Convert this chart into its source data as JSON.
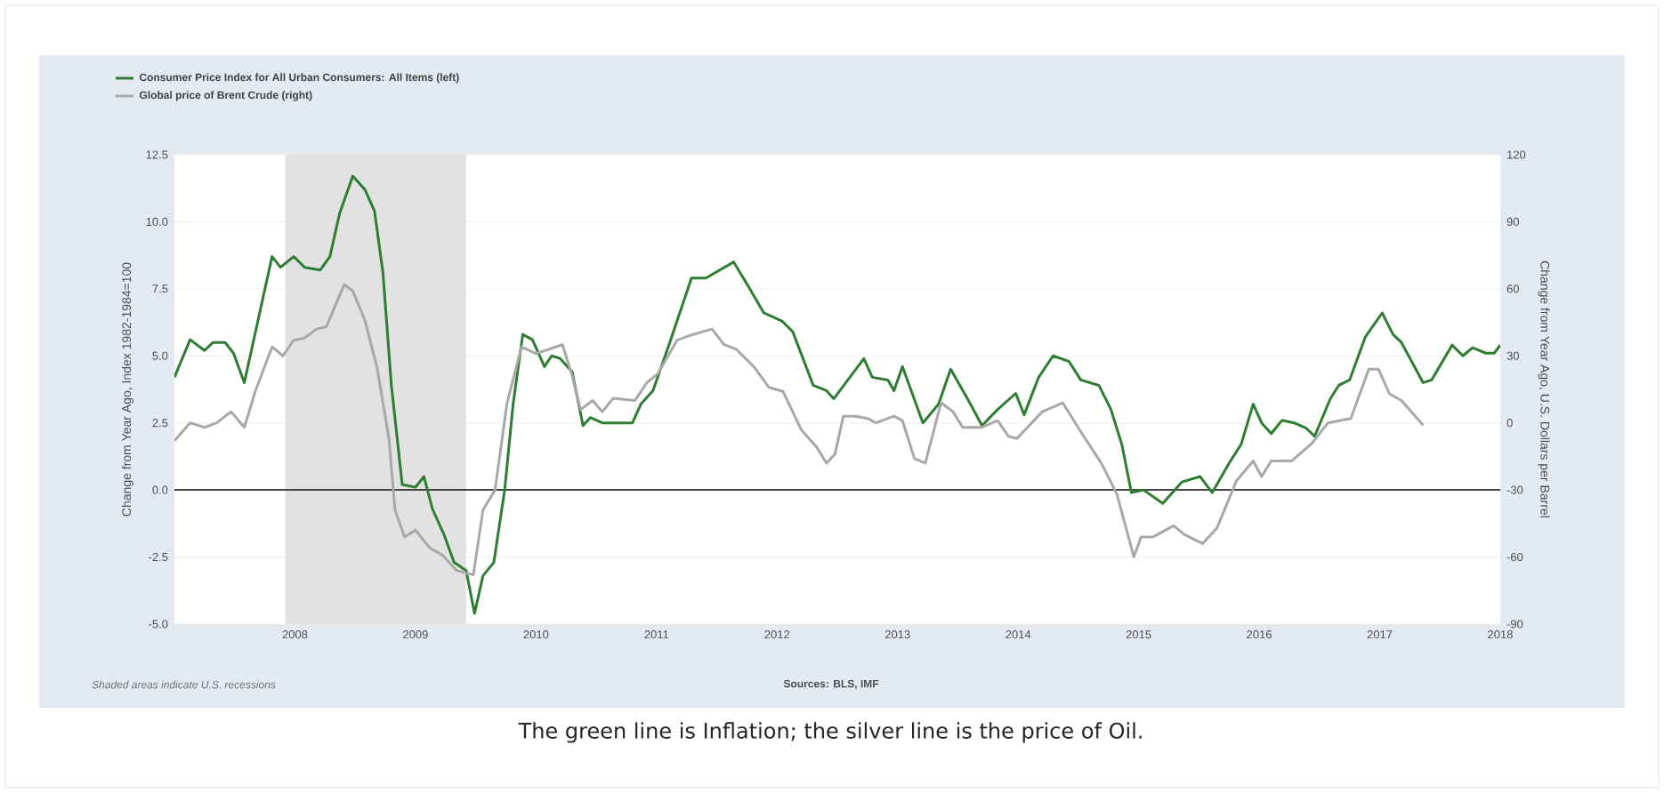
{
  "chart_data": {
    "type": "line",
    "xlabel": null,
    "ylabel": "Change from Year Ago, Index 1982-1984=100",
    "y2label": "Change from Year Ago, U.S. Dollars per Barrel",
    "annotations": [
      "Shaded areas indicate U.S. recessions",
      "Sources: BLS, IMF",
      "The green line is Inflation; the silver line is the price of Oil."
    ],
    "xlim": [
      2007.0,
      2018.0
    ],
    "xticks": [
      2008,
      2009,
      2010,
      2011,
      2012,
      2013,
      2014,
      2015,
      2016,
      2017,
      2018
    ],
    "ylim": [
      -5,
      12.5
    ],
    "yticks": [
      {
        "value": -5,
        "label": "-5.0"
      },
      {
        "value": -2.5,
        "label": "-2.5"
      },
      {
        "value": 0,
        "label": "0.0"
      },
      {
        "value": 2.5,
        "label": "2.5"
      },
      {
        "value": 5,
        "label": "5.0"
      },
      {
        "value": 7.5,
        "label": "7.5"
      },
      {
        "value": 10,
        "label": "10.0"
      },
      {
        "value": 12.5,
        "label": "12.5"
      }
    ],
    "y2lim": [
      -90,
      120
    ],
    "y2ticks": [
      -90,
      -60,
      -30,
      0,
      30,
      60,
      90,
      120
    ],
    "grid": "y",
    "legend": "top left",
    "marker": "none",
    "line_style": "solid",
    "ref_lines": [
      {
        "axis": "y",
        "value": 0,
        "color": "#444444"
      }
    ],
    "bands": [
      {
        "axis": "x",
        "from": 2007.92,
        "to": 2009.42,
        "color": "#e2e2e2"
      }
    ],
    "series": [
      {
        "name": "Consumer Price Index for All Urban Consumers: All Items (left)",
        "color": "#2e7d32",
        "x": [
          2007.0,
          2007.13,
          2007.25,
          2007.32,
          2007.42,
          2007.49,
          2007.58,
          2007.81,
          2007.88,
          2007.99,
          2008.08,
          2008.21,
          2008.29,
          2008.37,
          2008.48,
          2008.58,
          2008.66,
          2008.73,
          2008.8,
          2008.89,
          2009.0,
          2009.07,
          2009.14,
          2009.24,
          2009.32,
          2009.42,
          2009.49,
          2009.56,
          2009.65,
          2009.74,
          2009.81,
          2009.89,
          2009.97,
          2010.07,
          2010.13,
          2010.2,
          2010.3,
          2010.39,
          2010.45,
          2010.55,
          2010.8,
          2010.87,
          2010.97,
          2011.11,
          2011.29,
          2011.41,
          2011.64,
          2011.76,
          2011.89,
          2012.04,
          2012.13,
          2012.3,
          2012.41,
          2012.47,
          2012.72,
          2012.79,
          2012.92,
          2012.97,
          2013.04,
          2013.21,
          2013.34,
          2013.44,
          2013.58,
          2013.7,
          2013.83,
          2013.98,
          2014.05,
          2014.17,
          2014.29,
          2014.42,
          2014.52,
          2014.67,
          2014.77,
          2014.86,
          2014.94,
          2015.04,
          2015.2,
          2015.36,
          2015.51,
          2015.61,
          2015.75,
          2015.85,
          2015.95,
          2016.02,
          2016.1,
          2016.19,
          2016.29,
          2016.39,
          2016.46,
          2016.59,
          2016.66,
          2016.75,
          2016.88,
          2017.02,
          2017.11,
          2017.18,
          2017.36,
          2017.43,
          2017.6,
          2017.69,
          2017.77,
          2017.88,
          2017.95,
          2018.0
        ],
        "values": [
          4.2,
          5.6,
          5.2,
          5.5,
          5.5,
          5.1,
          4.0,
          8.7,
          8.3,
          8.7,
          8.3,
          8.2,
          8.7,
          10.3,
          11.7,
          11.2,
          10.4,
          8.1,
          3.9,
          0.2,
          0.1,
          0.5,
          -0.7,
          -1.7,
          -2.7,
          -3.0,
          -4.6,
          -3.2,
          -2.7,
          0.0,
          3.2,
          5.8,
          5.6,
          4.6,
          5.0,
          4.9,
          4.4,
          2.4,
          2.7,
          2.5,
          2.5,
          3.2,
          3.7,
          5.5,
          7.9,
          7.9,
          8.5,
          7.6,
          6.6,
          6.3,
          5.9,
          3.9,
          3.7,
          3.4,
          4.9,
          4.2,
          4.1,
          3.7,
          4.6,
          2.5,
          3.2,
          4.5,
          3.4,
          2.4,
          3.0,
          3.6,
          2.8,
          4.2,
          5.0,
          4.8,
          4.1,
          3.9,
          3.0,
          1.7,
          -0.1,
          0.0,
          -0.5,
          0.3,
          0.5,
          -0.1,
          1.0,
          1.7,
          3.2,
          2.5,
          2.1,
          2.6,
          2.5,
          2.3,
          2.0,
          3.4,
          3.9,
          4.1,
          5.7,
          6.6,
          5.8,
          5.5,
          4.0,
          4.1,
          5.4,
          5.0,
          5.3,
          5.1,
          5.1,
          5.4
        ]
      },
      {
        "name": "Global price of Brent Crude (right)",
        "color": "#a8a8a8",
        "axis": "y2",
        "x": [
          2007.0,
          2007.13,
          2007.25,
          2007.35,
          2007.47,
          2007.58,
          2007.67,
          2007.81,
          2007.9,
          2007.99,
          2008.08,
          2008.18,
          2008.26,
          2008.41,
          2008.48,
          2008.58,
          2008.68,
          2008.78,
          2008.83,
          2008.91,
          2009.0,
          2009.12,
          2009.22,
          2009.34,
          2009.48,
          2009.56,
          2009.66,
          2009.76,
          2009.88,
          2010.0,
          2010.22,
          2010.3,
          2010.37,
          2010.47,
          2010.55,
          2010.64,
          2010.82,
          2010.92,
          2011.01,
          2011.17,
          2011.27,
          2011.46,
          2011.56,
          2011.66,
          2011.81,
          2011.93,
          2012.05,
          2012.2,
          2012.33,
          2012.41,
          2012.48,
          2012.55,
          2012.65,
          2012.75,
          2012.82,
          2012.97,
          2013.04,
          2013.14,
          2013.23,
          2013.36,
          2013.46,
          2013.54,
          2013.7,
          2013.83,
          2013.92,
          2013.99,
          2014.2,
          2014.37,
          2014.52,
          2014.69,
          2014.82,
          2014.96,
          2015.02,
          2015.12,
          2015.29,
          2015.38,
          2015.53,
          2015.65,
          2015.81,
          2015.95,
          2016.02,
          2016.1,
          2016.27,
          2016.44,
          2016.57,
          2016.66,
          2016.76,
          2016.91,
          2016.99,
          2017.08,
          2017.18,
          2017.36
        ],
        "values": [
          -8,
          0,
          -2,
          0,
          5,
          -2,
          14,
          34,
          30,
          37,
          38,
          42,
          43,
          62,
          59,
          46,
          25,
          -7,
          -39,
          -51,
          -48,
          -56,
          -59,
          -66,
          -68,
          -39,
          -30,
          9,
          34,
          31,
          35,
          21,
          6,
          10,
          5,
          11,
          10,
          18,
          22,
          37,
          39,
          42,
          35,
          33,
          25,
          16,
          14,
          -3,
          -11,
          -18,
          -14,
          3,
          3,
          2,
          0,
          3,
          1,
          -16,
          -18,
          9,
          5,
          -2,
          -2,
          1,
          -6,
          -7,
          5,
          9,
          -4,
          -18,
          -32,
          -60,
          -51,
          -51,
          -46,
          -50,
          -54,
          -47,
          -26,
          -17,
          -24,
          -17,
          -17,
          -9,
          0,
          1,
          2,
          24,
          24,
          13,
          10,
          -1
        ]
      }
    ]
  }
}
